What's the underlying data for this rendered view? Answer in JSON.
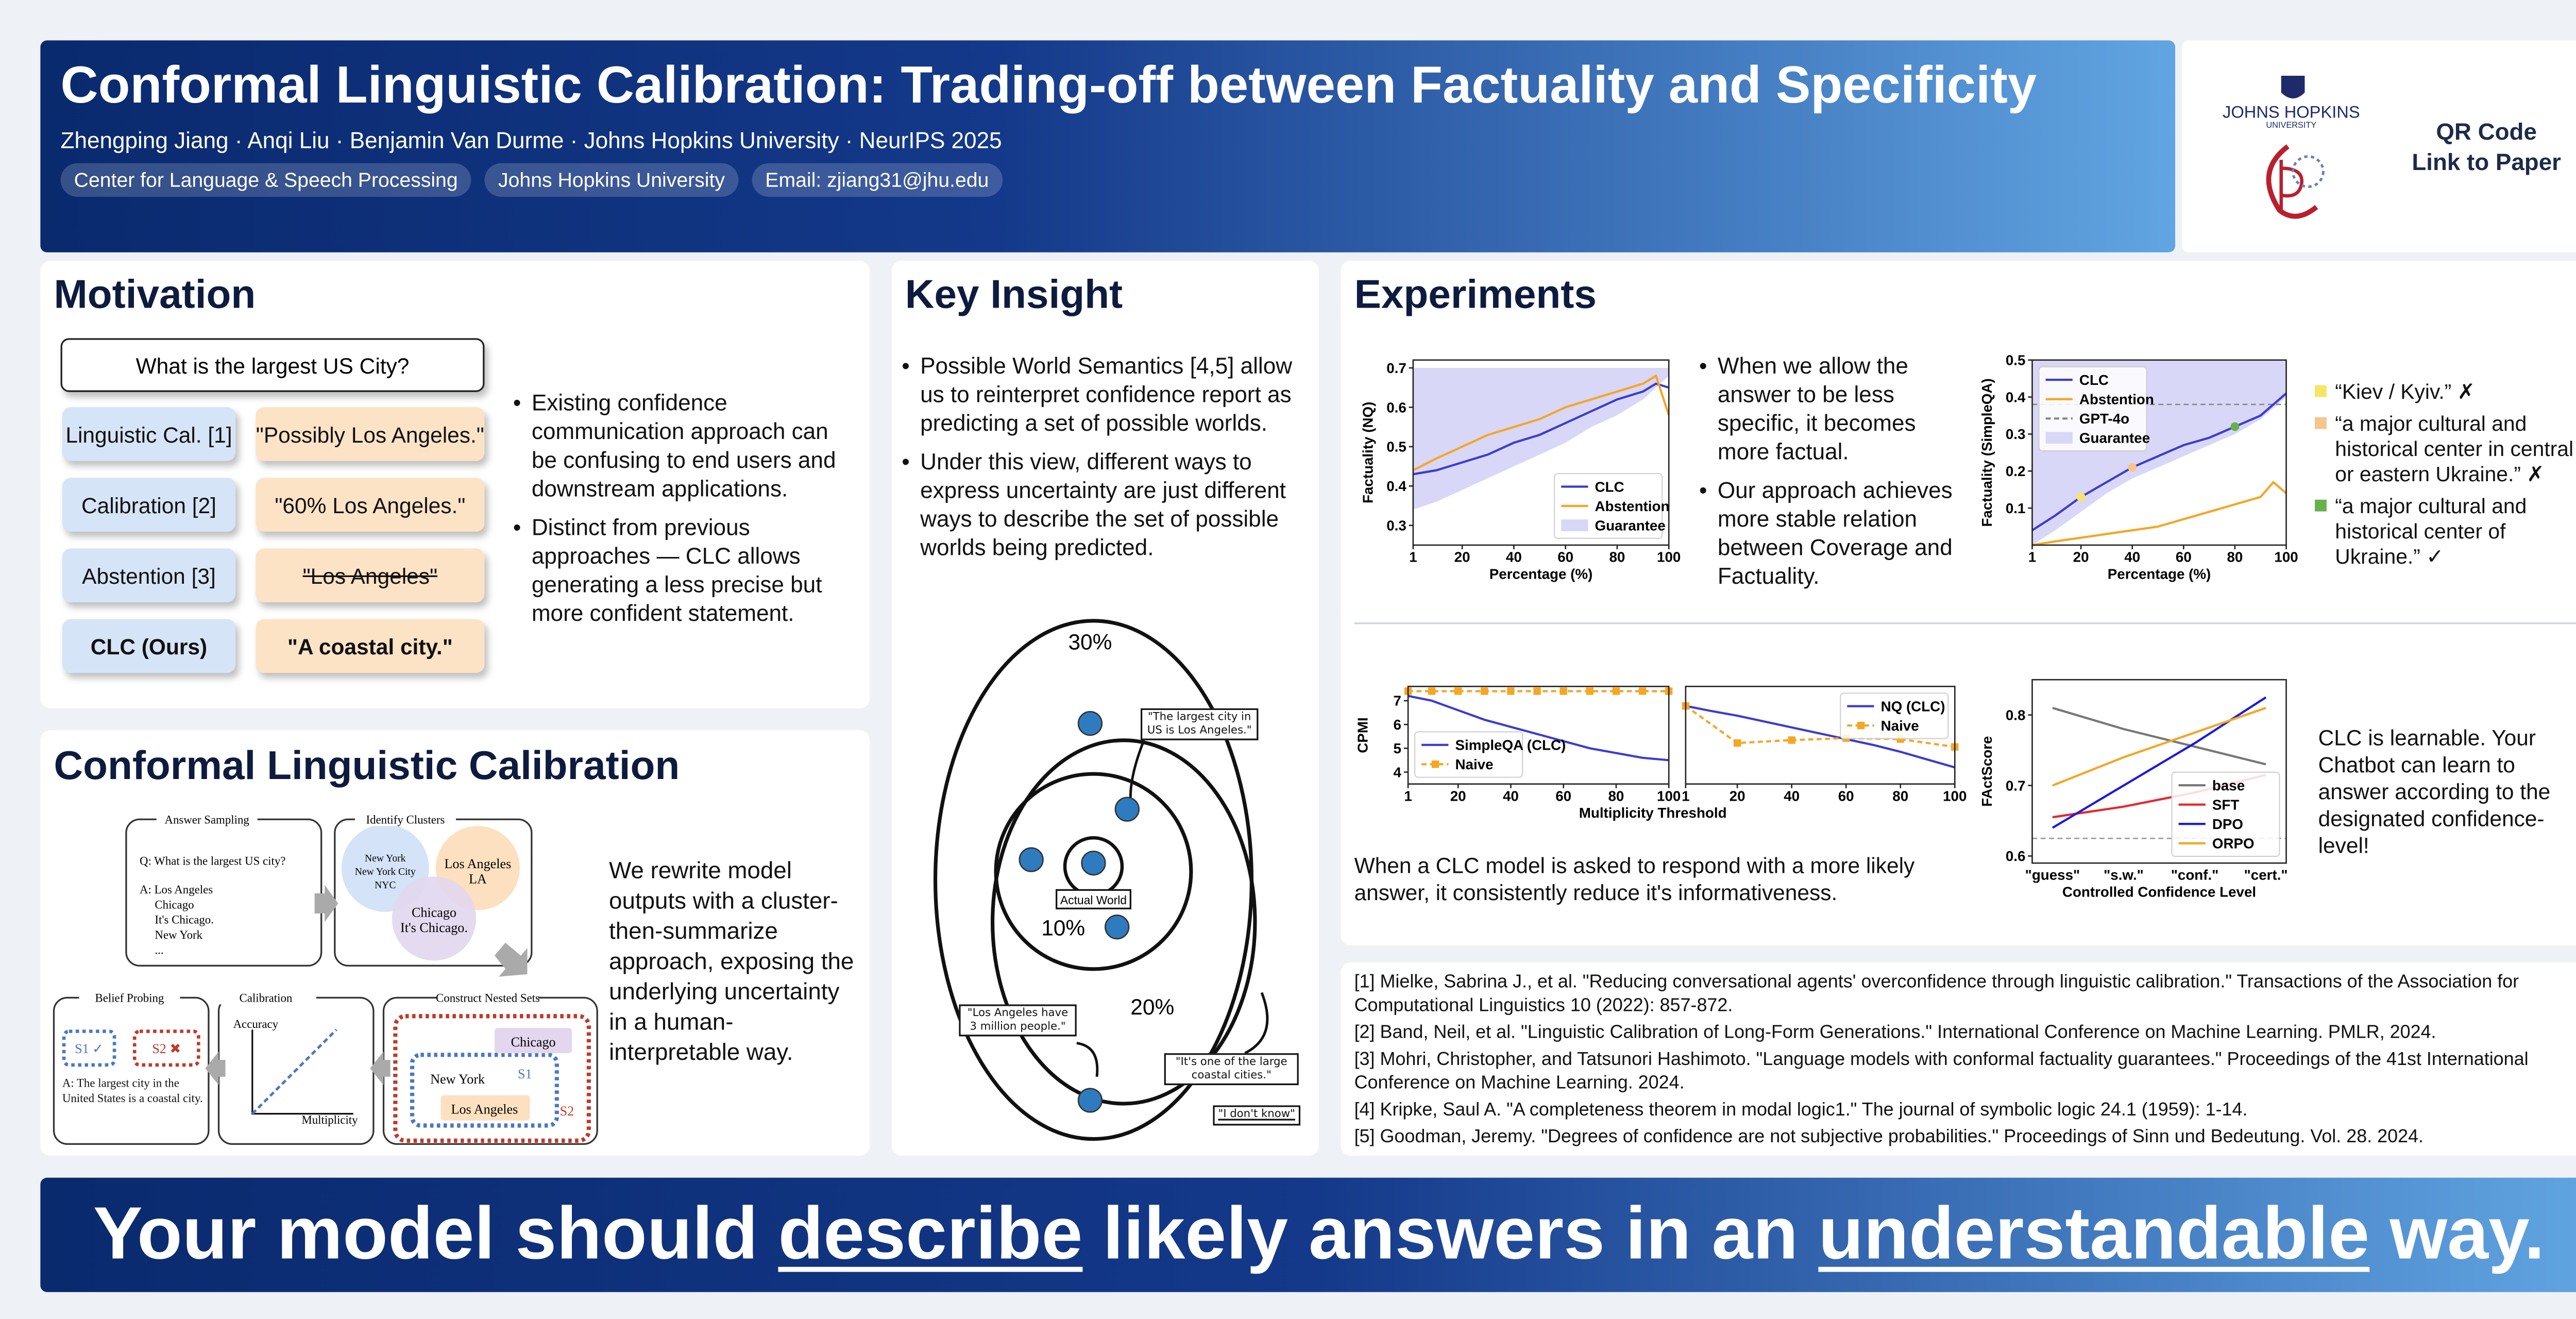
{
  "header": {
    "title": "Conformal Linguistic Calibration: Trading-off between Factuality and Specificity",
    "authors": "Zhengping Jiang · Anqi Liu · Benjamin Van Durme · Johns Hopkins University · NeurIPS 2025",
    "tags": [
      "Center for Language & Speech Processing",
      "Johns Hopkins University",
      "Email: zjiang31@jhu.edu"
    ],
    "logo": [
      "JOHNS HOPKINS",
      "UNIVERSITY"
    ],
    "qr": [
      "QR Code",
      "Link to Paper"
    ]
  },
  "motivation": {
    "title": "Motivation",
    "question": "What is the largest US City?",
    "rows": [
      {
        "method": "Linguistic Cal. [1]",
        "example": "\"Possibly Los Angeles.\""
      },
      {
        "method": "Calibration [2]",
        "example": "\"60% Los Angeles.\""
      },
      {
        "method": "Abstention [3]",
        "example": "\"Los Angeles\"",
        "strike": true
      },
      {
        "method": "CLC (Ours)",
        "example": "\"A coastal city.\"",
        "bold": true
      }
    ],
    "bullets": [
      "Existing confidence communication approach can be confusing to end users and downstream applications.",
      "Distinct from previous approaches — CLC allows generating a less precise but more confident statement."
    ]
  },
  "key_insight": {
    "title": "Key Insight",
    "bullets": [
      "Possible World Semantics [4,5] allow us to reinterpret confidence report as predicting a set of possible worlds.",
      "Under this view, different ways to express uncertainty are just different ways to describe the set of possible worlds being predicted."
    ],
    "diagram": {
      "worlds": [
        "30%",
        "10%",
        "20%"
      ],
      "actual": "Actual World",
      "quotes": [
        "\"The largest city in US is Los Angeles.\"",
        "\"Los Angeles have 3 million people.\"",
        "\"It's one of the large coastal cities.\"",
        "\"I don't know\""
      ]
    }
  },
  "clc": {
    "title": "Conformal Linguistic Calibration",
    "text": "We rewrite model outputs with a cluster-then-summarize approach, exposing the underlying uncertainty in a human-interpretable way.",
    "diagram": {
      "panels": [
        "Answer Sampling",
        "Identify Clusters",
        "Belief Probing",
        "Calibration",
        "Construct Nested Sets"
      ],
      "question": "Q: What is the largest US city?",
      "answers": [
        "A: Los Angeles",
        "Chicago",
        "It's Chicago.",
        "New York",
        "..."
      ],
      "clusters": [
        [
          "New York",
          "New York City",
          "NYC"
        ],
        [
          "Los Angeles",
          "LA"
        ],
        [
          "Chicago",
          "It's Chicago."
        ]
      ],
      "probes": [
        "S1 ✓",
        "S2 ✖"
      ],
      "final": "A: The largest city in the United States is a coastal city.",
      "axes": [
        "Accuracy",
        "Multiplicity"
      ],
      "sets": [
        "Chicago",
        "New York",
        "S1",
        "Los Angeles",
        "S2"
      ]
    }
  },
  "experiments": {
    "title": "Experiments",
    "bullets": [
      "When we allow the answer to be less specific, it becomes more factual.",
      "Our approach achieves more stable relation between Coverage and Factuality."
    ],
    "examples": [
      {
        "text": "“Kiev / Kyiv.” ✗",
        "color": "#f5e663"
      },
      {
        "text": "“a major cultural and historical center in central or eastern Ukraine.” ✗",
        "color": "#f7c48a"
      },
      {
        "text": "“a major cultural and historical center of Ukraine.” ✓",
        "color": "#6ab04c"
      }
    ],
    "shared_xlabel": "Multiplicity Threshold",
    "caption_informativeness": "When a CLC model is asked to respond with a more likely answer, it consistently reduce it's informativeness.",
    "caption_learnable": "CLC is learnable. Your Chatbot can learn to answer according to the designated confidence-level!",
    "charts": [
      {
        "type": "line",
        "xlabel": "Percentage (%)",
        "ylabel": "Factuality (NQ)",
        "x": [
          1,
          10,
          20,
          30,
          40,
          50,
          60,
          70,
          80,
          90,
          95,
          100
        ],
        "xlim": [
          1,
          100
        ],
        "xticks": [
          1,
          20,
          40,
          60,
          80,
          100
        ],
        "ylim": [
          0.25,
          0.72
        ],
        "yticks": [
          0.3,
          0.4,
          0.5,
          0.6,
          0.7
        ],
        "legend": "lower right",
        "series": [
          {
            "name": "CLC",
            "color": "#3b3bd1",
            "values": [
              0.43,
              0.44,
              0.46,
              0.48,
              0.51,
              0.53,
              0.56,
              0.59,
              0.62,
              0.64,
              0.66,
              0.65
            ]
          },
          {
            "name": "Abstention",
            "color": "#f5a623",
            "values": [
              0.44,
              0.47,
              0.5,
              0.53,
              0.55,
              0.57,
              0.6,
              0.62,
              0.64,
              0.66,
              0.68,
              0.58
            ]
          }
        ],
        "band": {
          "name": "Guarantee",
          "color": "#d9d7f7",
          "lower": [
            0.34,
            0.36,
            0.39,
            0.42,
            0.45,
            0.48,
            0.51,
            0.55,
            0.58,
            0.62,
            0.65,
            0.68
          ],
          "upper": [
            0.7,
            0.7,
            0.7,
            0.7,
            0.7,
            0.7,
            0.7,
            0.7,
            0.7,
            0.7,
            0.7,
            0.7
          ]
        }
      },
      {
        "type": "line",
        "xlabel": "Percentage (%)",
        "ylabel": "Factuality (SimpleQA)",
        "x": [
          1,
          10,
          20,
          30,
          40,
          50,
          60,
          70,
          80,
          90,
          95,
          100
        ],
        "xlim": [
          1,
          100
        ],
        "xticks": [
          1,
          20,
          40,
          60,
          80,
          100
        ],
        "ylim": [
          0.0,
          0.5
        ],
        "yticks": [
          0.1,
          0.2,
          0.3,
          0.4,
          0.5
        ],
        "legend": "upper left",
        "series": [
          {
            "name": "CLC",
            "color": "#3b3bd1",
            "values": [
              0.04,
              0.08,
              0.13,
              0.17,
              0.21,
              0.24,
              0.27,
              0.29,
              0.32,
              0.35,
              0.38,
              0.41
            ]
          },
          {
            "name": "Abstention",
            "color": "#f5a623",
            "values": [
              0.0,
              0.01,
              0.02,
              0.03,
              0.04,
              0.05,
              0.07,
              0.09,
              0.11,
              0.13,
              0.17,
              0.14
            ]
          }
        ],
        "reference": {
          "name": "GPT-4o",
          "value": 0.38,
          "color": "#888888"
        },
        "band": {
          "name": "Guarantee",
          "color": "#d9d7f7",
          "lower": [
            0.0,
            0.04,
            0.09,
            0.14,
            0.18,
            0.21,
            0.24,
            0.27,
            0.3,
            0.34,
            0.37,
            0.4
          ],
          "upper": [
            0.5,
            0.5,
            0.5,
            0.5,
            0.5,
            0.5,
            0.5,
            0.5,
            0.5,
            0.5,
            0.5,
            0.5
          ]
        },
        "highlights": [
          {
            "x": 20,
            "y": 0.13,
            "color": "#f5e663"
          },
          {
            "x": 40,
            "y": 0.21,
            "color": "#f7c48a"
          },
          {
            "x": 80,
            "y": 0.32,
            "color": "#6ab04c"
          }
        ]
      },
      {
        "type": "line",
        "ylabel": "CPMI",
        "x": [
          1,
          10,
          20,
          30,
          40,
          50,
          60,
          70,
          80,
          90,
          100
        ],
        "xlim": [
          1,
          100
        ],
        "xticks": [
          1,
          20,
          40,
          60,
          80,
          100
        ],
        "ylim": [
          3.5,
          7.6
        ],
        "yticks": [
          4,
          5,
          6,
          7
        ],
        "legend": "lower left",
        "series": [
          {
            "name": "SimpleQA (CLC)",
            "color": "#3b3bd1",
            "values": [
              7.2,
              7.0,
              6.6,
              6.2,
              5.9,
              5.6,
              5.3,
              5.0,
              4.8,
              4.6,
              4.5
            ]
          },
          {
            "name": "Naive",
            "color": "#f5a623",
            "dash": true,
            "marker": "square",
            "values": [
              7.4,
              7.4,
              7.4,
              7.4,
              7.4,
              7.4,
              7.4,
              7.4,
              7.4,
              7.4,
              7.4
            ]
          }
        ]
      },
      {
        "type": "line",
        "x": [
          1,
          10,
          20,
          30,
          40,
          50,
          60,
          70,
          80,
          90,
          100
        ],
        "xlim": [
          1,
          100
        ],
        "xticks": [
          1,
          20,
          40,
          60,
          80,
          100
        ],
        "ylim": [
          0,
          1
        ],
        "legend": "upper right",
        "series": [
          {
            "name": "NQ (CLC)",
            "color": "#3b3bd1",
            "values": [
              0.8,
              0.75,
              0.7,
              0.64,
              0.58,
              0.52,
              0.46,
              0.4,
              0.33,
              0.25,
              0.17
            ]
          },
          {
            "name": "Naive",
            "color": "#f5a623",
            "dash": true,
            "marker": "square",
            "x": [
              1,
              20,
              40,
              60,
              80,
              100
            ],
            "values": [
              0.8,
              0.42,
              0.45,
              0.47,
              0.46,
              0.38
            ]
          }
        ]
      },
      {
        "type": "line",
        "xlabel": "Controlled Confidence Level",
        "ylabel": "FActScore",
        "categories": [
          "\"guess\"",
          "\"s.w.\"",
          "\"conf.\"",
          "\"cert.\""
        ],
        "ylim": [
          0.59,
          0.85
        ],
        "yticks": [
          0.6,
          0.7,
          0.8
        ],
        "legend": "lower right",
        "reference": {
          "value": 0.625,
          "color": "#999999"
        },
        "series": [
          {
            "name": "base",
            "color": "#777777",
            "values": [
              0.81,
              0.78,
              0.755,
              0.73
            ]
          },
          {
            "name": "SFT",
            "color": "#e8262b",
            "values": [
              0.655,
              0.67,
              0.69,
              0.715
            ]
          },
          {
            "name": "DPO",
            "color": "#1a1ae0",
            "values": [
              0.64,
              0.7,
              0.76,
              0.825
            ]
          },
          {
            "name": "ORPO",
            "color": "#f5a623",
            "values": [
              0.7,
              0.74,
              0.775,
              0.81
            ]
          }
        ]
      }
    ]
  },
  "references": [
    "[1] Mielke, Sabrina J., et al. \"Reducing conversational agents' overconfidence through linguistic calibration.\" Transactions of the Association for Computational Linguistics 10 (2022): 857-872.",
    "[2] Band, Neil, et al. \"Linguistic Calibration of Long-Form Generations.\" International Conference on Machine Learning. PMLR, 2024.",
    "[3] Mohri, Christopher, and Tatsunori Hashimoto. \"Language models with conformal factuality guarantees.\" Proceedings of the 41st International Conference on Machine Learning. 2024.",
    "[4] Kripke, Saul A. \"A completeness theorem in modal logic1.\" The journal of symbolic logic 24.1 (1959): 1-14.",
    "[5] Goodman, Jeremy. \"Degrees of confidence are not subjective probabilities.\" Proceedings of Sinn und Bedeutung. Vol. 28. 2024."
  ],
  "footer": [
    {
      "text": "Your model should"
    },
    {
      "text": "describe",
      "underline": true
    },
    {
      "text": "likely answers in an"
    },
    {
      "text": "understandable",
      "underline": true
    },
    {
      "text": "way."
    }
  ]
}
